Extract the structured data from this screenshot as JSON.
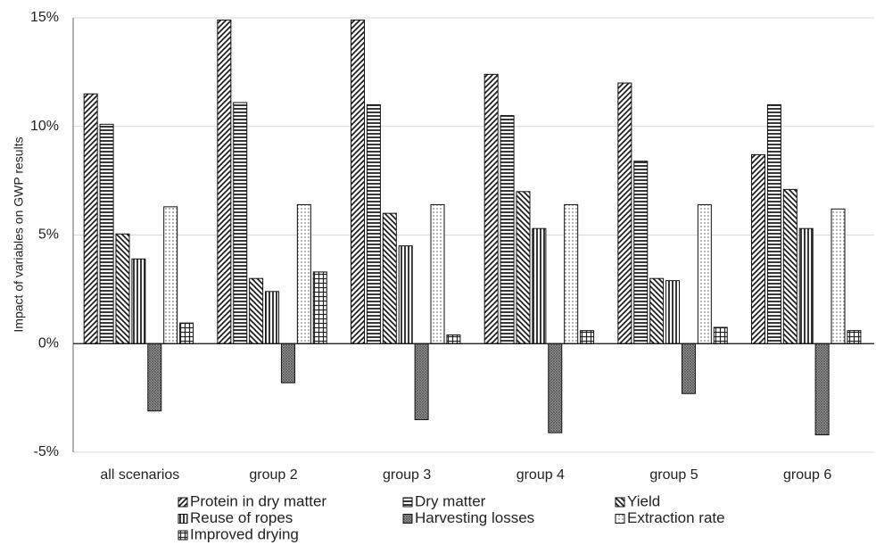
{
  "chart_data": {
    "type": "bar",
    "y_label": "Impact of variables on GWP results",
    "categories": [
      "all scenarios",
      "group 2",
      "group 3",
      "group 4",
      "group 5",
      "group 6"
    ],
    "series": [
      {
        "name": "Protein in dry matter",
        "color": "#222222",
        "pattern": "diagonal",
        "values": [
          11.5,
          14.9,
          14.9,
          12.4,
          12.0,
          8.7
        ]
      },
      {
        "name": "Dry matter",
        "color": "#222222",
        "pattern": "horizontal",
        "values": [
          10.1,
          11.1,
          11.0,
          10.5,
          8.4,
          11.0
        ]
      },
      {
        "name": "Yield",
        "color": "#222222",
        "pattern": "backdiagonal",
        "values": [
          5.05,
          3.0,
          6.0,
          7.0,
          3.0,
          7.1
        ]
      },
      {
        "name": "Reuse of ropes",
        "color": "#222222",
        "pattern": "vertical",
        "values": [
          3.9,
          2.4,
          4.5,
          5.3,
          2.9,
          5.3
        ]
      },
      {
        "name": "Harvesting losses",
        "color": "#555555",
        "pattern": "crosshatch",
        "values": [
          -3.1,
          -1.8,
          -3.5,
          -4.1,
          -2.3,
          -4.2
        ]
      },
      {
        "name": "Extraction rate",
        "color": "#444444",
        "pattern": "dots",
        "values": [
          6.3,
          6.4,
          6.4,
          6.4,
          6.4,
          6.2
        ]
      },
      {
        "name": "Improved drying",
        "color": "#222222",
        "pattern": "grid",
        "values": [
          0.95,
          3.3,
          0.4,
          0.6,
          0.75,
          0.6
        ]
      }
    ],
    "ylim": [
      -5,
      15
    ],
    "yticks": [
      {
        "value": -5,
        "label": "-5%"
      },
      {
        "value": 0,
        "label": "0%"
      },
      {
        "value": 5,
        "label": "5%"
      },
      {
        "value": 10,
        "label": "10%"
      },
      {
        "value": 15,
        "label": "15%"
      }
    ],
    "grid": true,
    "legend": "bottom"
  }
}
